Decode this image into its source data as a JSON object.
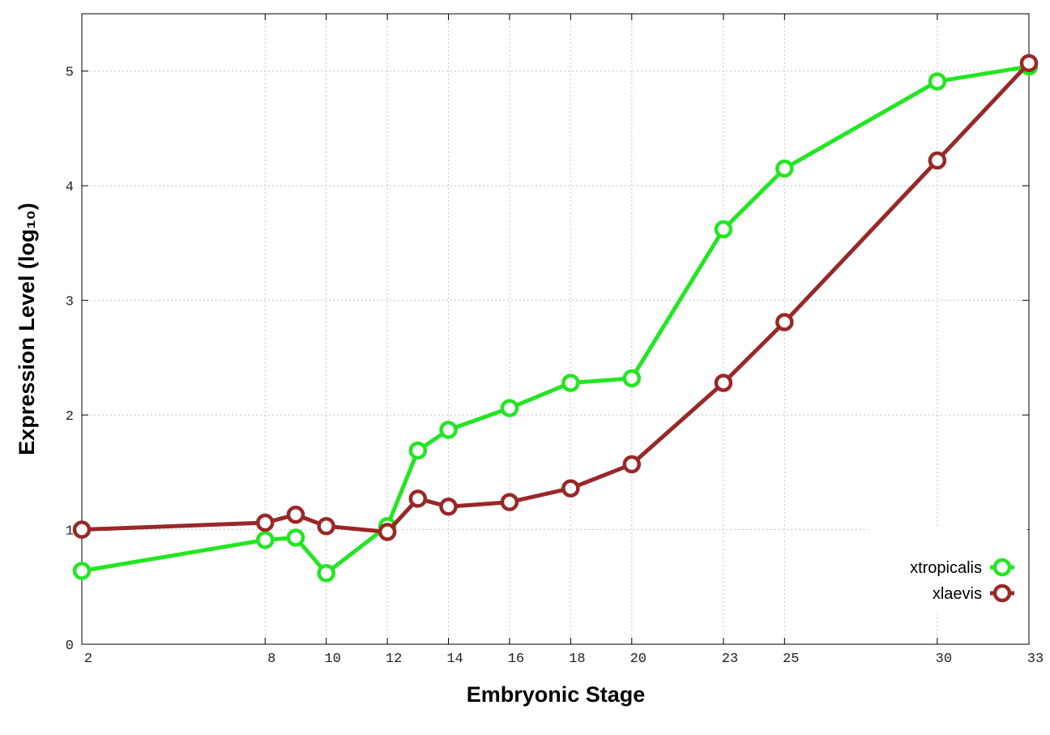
{
  "chart_data": {
    "type": "line",
    "xlabel": "Embryonic Stage",
    "ylabel": "Expression Level (log₁₀)",
    "x": [
      2,
      8,
      9,
      10,
      12,
      13,
      14,
      16,
      18,
      20,
      23,
      25,
      30,
      33
    ],
    "series": [
      {
        "name": "xtropicalis",
        "color": "#22e622",
        "values": [
          0.64,
          0.91,
          0.93,
          0.62,
          1.03,
          1.69,
          1.87,
          2.06,
          2.28,
          2.32,
          3.62,
          4.15,
          4.91,
          5.04
        ]
      },
      {
        "name": "xlaevis",
        "color": "#992828",
        "values": [
          1.0,
          1.06,
          1.13,
          1.03,
          0.98,
          1.27,
          1.2,
          1.24,
          1.36,
          1.57,
          2.28,
          2.81,
          4.22,
          5.07
        ]
      }
    ],
    "xlim": [
      2,
      33
    ],
    "ylim": [
      0,
      5.5
    ],
    "xticks": [
      2,
      8,
      10,
      12,
      14,
      16,
      18,
      20,
      23,
      25,
      30,
      33
    ],
    "yticks": [
      0,
      1,
      2,
      3,
      4,
      5
    ],
    "grid": true,
    "legend": "bottom-right"
  }
}
